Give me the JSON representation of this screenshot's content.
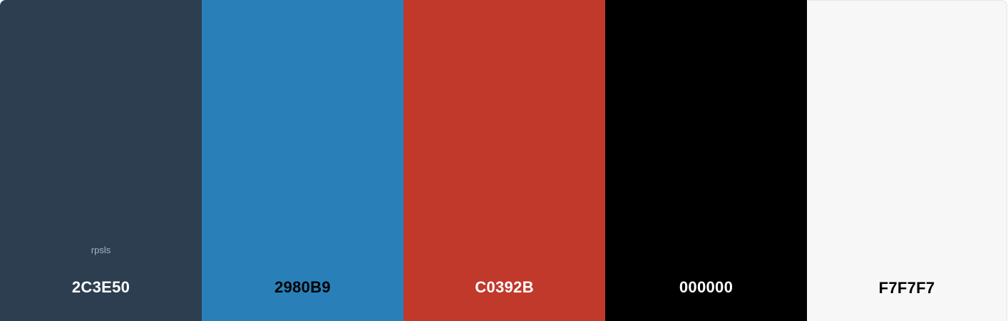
{
  "palette": {
    "swatches": [
      {
        "hex": "2C3E50",
        "color": "#2C3E50",
        "text_color": "#ffffff",
        "name": "rpsls"
      },
      {
        "hex": "2980B9",
        "color": "#2980B9",
        "text_color": "#000000"
      },
      {
        "hex": "C0392B",
        "color": "#C0392B",
        "text_color": "#ffffff"
      },
      {
        "hex": "000000",
        "color": "#000000",
        "text_color": "#ffffff"
      },
      {
        "hex": "F7F7F7",
        "color": "#F7F7F7",
        "text_color": "#000000"
      }
    ]
  }
}
